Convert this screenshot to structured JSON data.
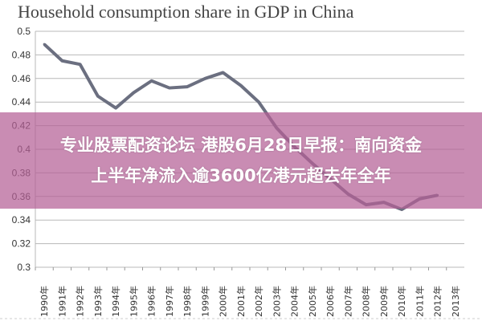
{
  "chart_data": {
    "type": "line",
    "title": "Household consumption share in GDP in China",
    "xlabel": "",
    "ylabel": "",
    "categories": [
      "1990年",
      "1991年",
      "1992年",
      "1993年",
      "1994年",
      "1995年",
      "1996年",
      "1997年",
      "1998年",
      "1999年",
      "2000年",
      "2001年",
      "2002年",
      "2003年",
      "2004年",
      "2005年",
      "2006年",
      "2007年",
      "2008年",
      "2009年",
      "2010年",
      "2011年",
      "2012年",
      "2013年"
    ],
    "values": [
      0.489,
      0.475,
      0.472,
      0.445,
      0.435,
      0.448,
      0.458,
      0.452,
      0.453,
      0.46,
      0.465,
      0.454,
      0.44,
      0.418,
      0.402,
      0.388,
      0.375,
      0.362,
      0.353,
      0.355,
      0.349,
      0.358,
      0.361,
      null
    ],
    "ylim": [
      0.3,
      0.5
    ],
    "yticks": [
      "0.3",
      "0.32",
      "0.34",
      "0.36",
      "0.38",
      "0.4",
      "0.42",
      "0.44",
      "0.46",
      "0.48",
      "0.5"
    ],
    "grid": true,
    "line_color": "#6b6f80"
  },
  "overlay": {
    "line1": "专业股票配资论坛 港股6月28日早报：南向资金",
    "line2": "上半年净流入逾3600亿港元超去年全年",
    "color": "#b45f96"
  }
}
